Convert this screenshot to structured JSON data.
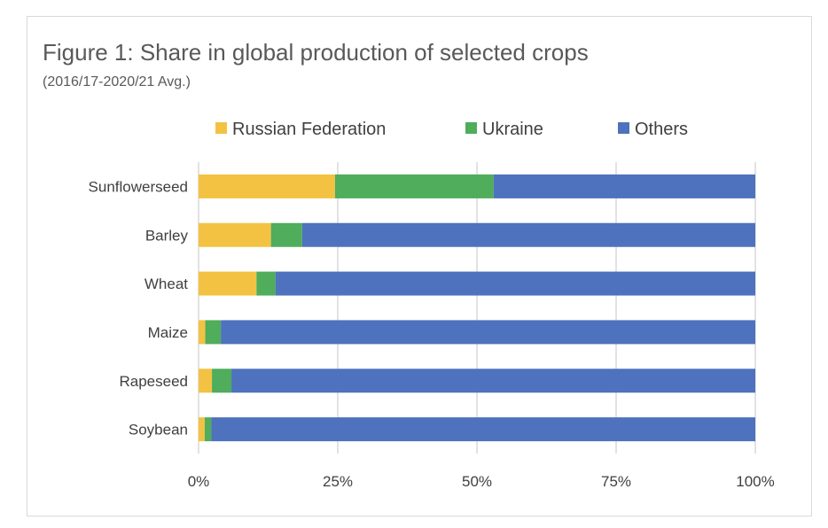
{
  "chart_data": {
    "type": "bar",
    "orientation": "horizontal",
    "stacked": true,
    "title": "Figure 1: Share in global production of selected crops",
    "subtitle": "(2016/17-2020/21 Avg.)",
    "categories": [
      "Sunflowerseed",
      "Barley",
      "Wheat",
      "Maize",
      "Rapeseed",
      "Soybean"
    ],
    "series": [
      {
        "name": "Russian Federation",
        "color": "#F4C242",
        "values": [
          24.5,
          13.0,
          10.4,
          1.2,
          2.4,
          1.1
        ]
      },
      {
        "name": "Ukraine",
        "color": "#4FAD5B",
        "values": [
          28.5,
          5.6,
          3.4,
          2.8,
          3.5,
          1.2
        ]
      },
      {
        "name": "Others",
        "color": "#4E72BE",
        "values": [
          47.0,
          81.4,
          86.2,
          96.0,
          94.1,
          97.7
        ]
      }
    ],
    "xlim": [
      0,
      100
    ],
    "xticks": [
      "0%",
      "25%",
      "50%",
      "75%",
      "100%"
    ],
    "xlabel": "",
    "ylabel": "",
    "grid": true,
    "legend": "top"
  }
}
